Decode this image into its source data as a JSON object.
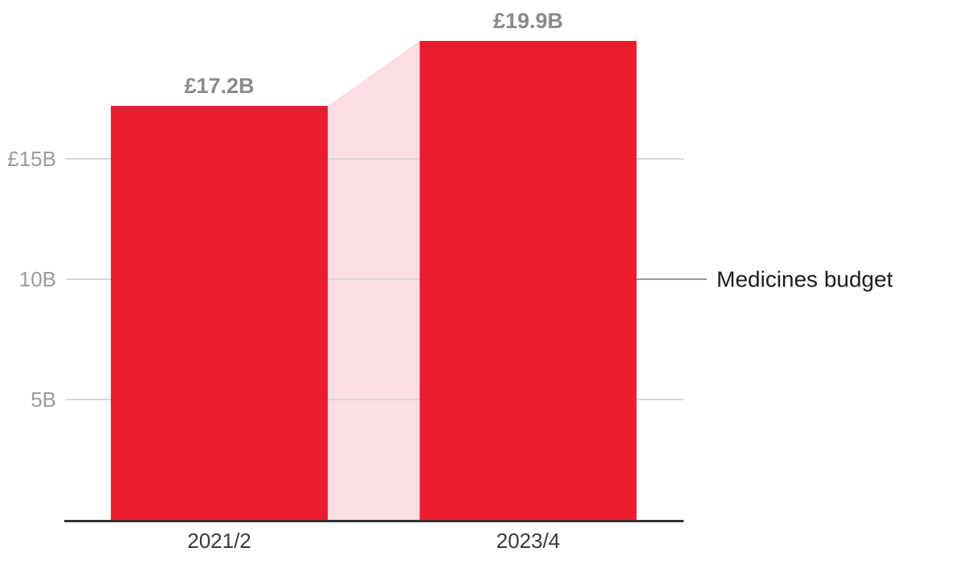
{
  "chart_data": {
    "type": "bar",
    "categories": [
      "2021/2",
      "2023/4"
    ],
    "values": [
      17.2,
      19.9
    ],
    "value_labels": [
      "£17.2B",
      "£19.9B"
    ],
    "series_label": "Medicines budget",
    "y_ticks": [
      {
        "value": 15,
        "label": "£15B"
      },
      {
        "value": 10,
        "label": "10B"
      },
      {
        "value": 5,
        "label": "5B"
      }
    ],
    "ylim": [
      0,
      21.6
    ],
    "grid": true,
    "legend_position": "right-annotation",
    "colors": {
      "bar": "#EC1B2E",
      "band": "#FBDDE2",
      "gridline": "#D6D6D6",
      "axis": "#333333",
      "tick_label": "#9B9B9B",
      "value_label": "#8A8A8A",
      "category_label": "#3A3A3A",
      "annotation": "#1C1C1C",
      "callout_line": "#999999"
    }
  }
}
